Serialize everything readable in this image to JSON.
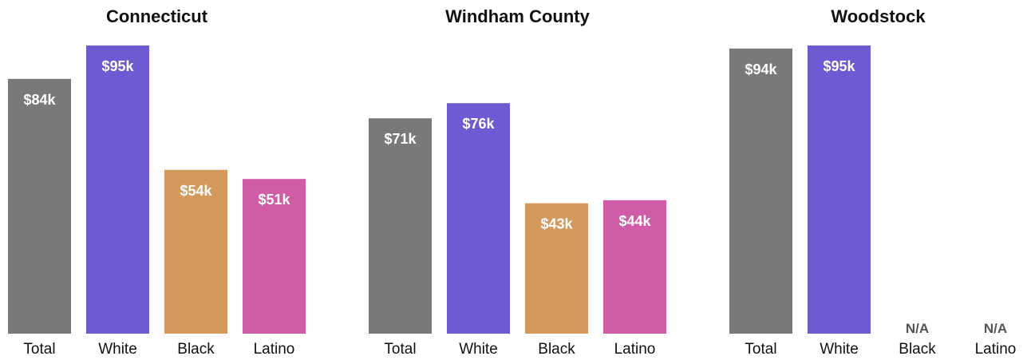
{
  "chart_data": [
    {
      "type": "bar",
      "title": "Connecticut",
      "categories": [
        "Total",
        "White",
        "Black",
        "Latino"
      ],
      "values": [
        84,
        95,
        54,
        51
      ],
      "value_labels": [
        "$84k",
        "$95k",
        "$54k",
        "$51k"
      ],
      "colors": [
        "#797979",
        "#6e5bd3",
        "#d39a5b",
        "#d05ba7"
      ]
    },
    {
      "type": "bar",
      "title": "Windham County",
      "categories": [
        "Total",
        "White",
        "Black",
        "Latino"
      ],
      "values": [
        71,
        76,
        43,
        44
      ],
      "value_labels": [
        "$71k",
        "$76k",
        "$43k",
        "$44k"
      ],
      "colors": [
        "#797979",
        "#6e5bd3",
        "#d39a5b",
        "#d05ba7"
      ]
    },
    {
      "type": "bar",
      "title": "Woodstock",
      "categories": [
        "Total",
        "White",
        "Black",
        "Latino"
      ],
      "values": [
        94,
        95,
        null,
        null
      ],
      "value_labels": [
        "$94k",
        "$95k",
        "N/A",
        "N/A"
      ],
      "colors": [
        "#797979",
        "#6e5bd3",
        "#d39a5b",
        "#d05ba7"
      ]
    }
  ],
  "colors": {
    "value_label": "#ffffff",
    "na_label": "#555555",
    "category_label": "#111111",
    "title": "#111111"
  }
}
